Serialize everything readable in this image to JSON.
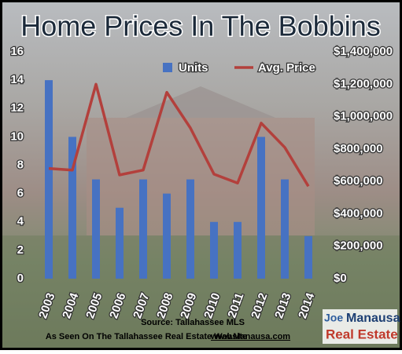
{
  "chart_data": {
    "type": "bar",
    "title": "Home Prices In The Bobbins",
    "categories": [
      "2003",
      "2004",
      "2005",
      "2006",
      "2007",
      "2008",
      "2009",
      "2010",
      "2011",
      "2012",
      "2013",
      "2014"
    ],
    "series": [
      {
        "name": "Units",
        "type": "bar",
        "color": "#4772c2",
        "values": [
          14,
          10,
          7,
          5,
          7,
          6,
          7,
          4,
          4,
          10,
          7,
          3
        ]
      },
      {
        "name": "Avg. Price",
        "type": "line",
        "axis": "y2",
        "color": "#b3403c",
        "values": [
          680000,
          670000,
          1200000,
          640000,
          670000,
          1150000,
          930000,
          645000,
          590000,
          960000,
          810000,
          570000
        ]
      }
    ],
    "ylim": [
      0,
      16
    ],
    "yticks": [
      0,
      2,
      4,
      6,
      8,
      10,
      12,
      14,
      16
    ],
    "y2lim": [
      0,
      1400000
    ],
    "y2ticks": [
      {
        "value": 0,
        "label": "$0"
      },
      {
        "value": 200000,
        "label": "$200,000"
      },
      {
        "value": 400000,
        "label": "$400,000"
      },
      {
        "value": 600000,
        "label": "$600,000"
      },
      {
        "value": 800000,
        "label": "$800,000"
      },
      {
        "value": 1000000,
        "label": "$1,000,000"
      },
      {
        "value": 1200000,
        "label": "$1,200,000"
      },
      {
        "value": 1400000,
        "label": "$1,400,000"
      }
    ],
    "legend": "top"
  },
  "footer": {
    "source": "Source: Tallahassee MLS",
    "seen_on": "As Seen On The Tallahassee Real Estate Website",
    "website": "www.Manausa.com"
  },
  "logo": {
    "first": "Joe",
    "last": "Manausa",
    "subtitle": "Real Estate"
  }
}
